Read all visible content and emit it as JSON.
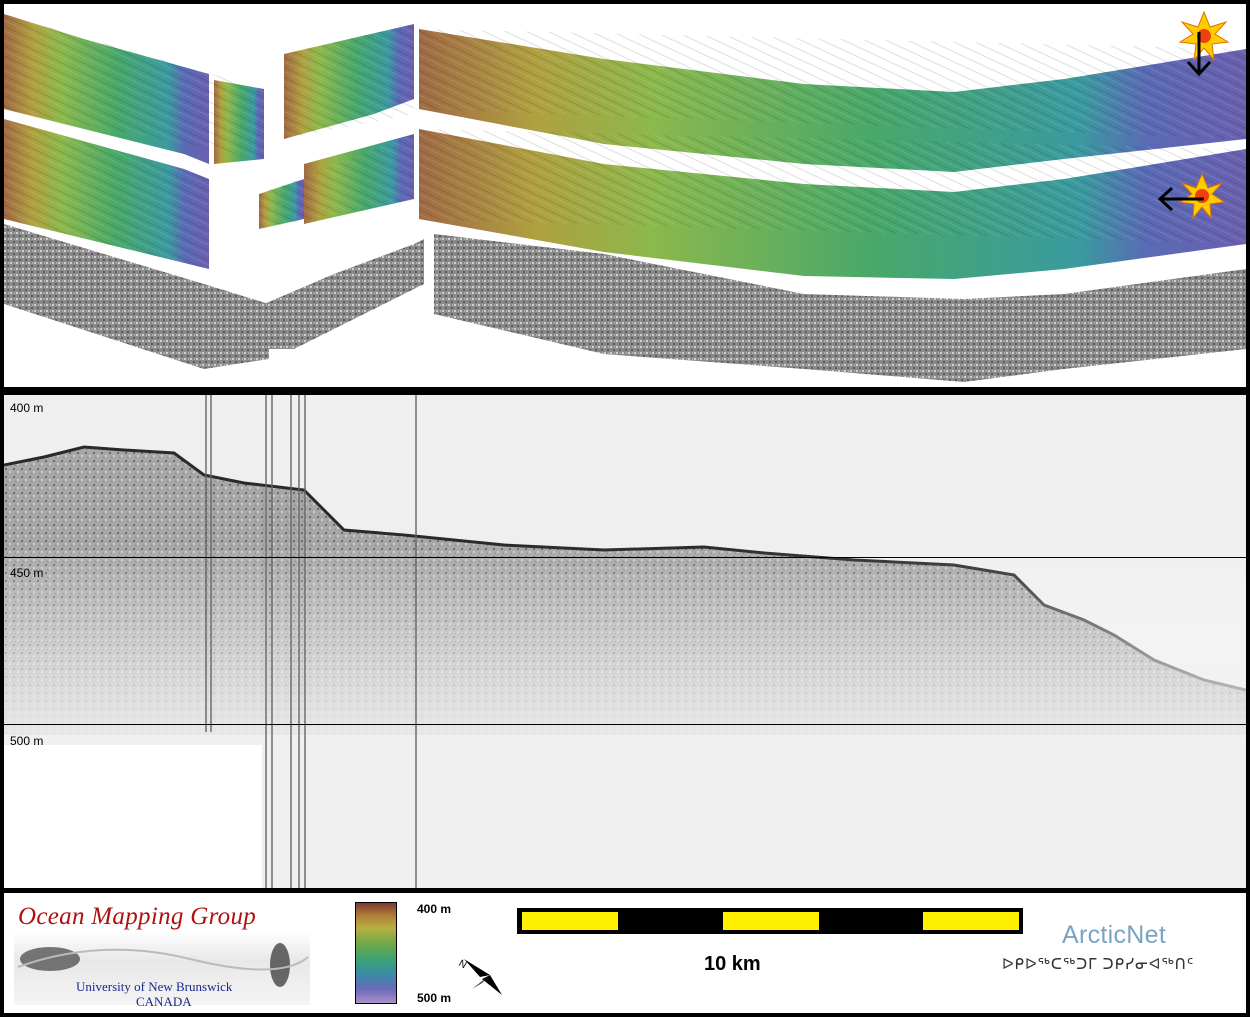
{
  "profile": {
    "depth_labels": [
      "400 m",
      "450 m",
      "500 m"
    ]
  },
  "footer": {
    "logo": {
      "title": "Ocean Mapping Group",
      "university": "University of New Brunswick",
      "country": "CANADA"
    },
    "colorbar": {
      "top_label": "400 m",
      "bottom_label": "500 m"
    },
    "scalebar": {
      "label": "10 km",
      "colors": [
        "#ffef00",
        "#000000"
      ]
    },
    "arcticnet": {
      "title": "ArcticNet",
      "syllabics": "ᐅᑭᐅᖅᑕᖅᑐᒥ ᑐᑭᓯᓂᐊᖅᑎᑦ"
    }
  },
  "map": {
    "sun_icons": [
      "sun-icon-top",
      "sun-icon-middle"
    ]
  }
}
